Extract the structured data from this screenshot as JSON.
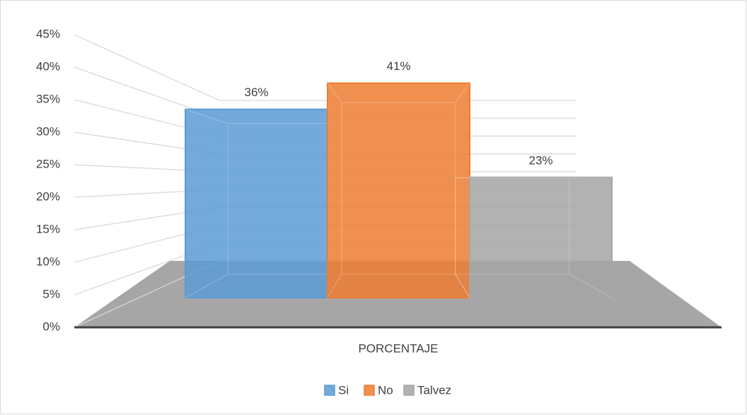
{
  "chart_data": {
    "type": "bar",
    "categories": [
      "PORCENTAJE"
    ],
    "series": [
      {
        "name": "Si",
        "color": "#5b9bd5",
        "values": [
          36
        ],
        "value_labels": [
          "36%"
        ]
      },
      {
        "name": "No",
        "color": "#ed7d31",
        "values": [
          41
        ],
        "value_labels": [
          "41%"
        ]
      },
      {
        "name": "Talvez",
        "color": "#a5a5a5",
        "values": [
          23
        ],
        "value_labels": [
          "23%"
        ]
      }
    ],
    "ylim": [
      0,
      45
    ],
    "yticks": [
      {
        "value": 0,
        "label": "0%"
      },
      {
        "value": 5,
        "label": "5%"
      },
      {
        "value": 10,
        "label": "10%"
      },
      {
        "value": 15,
        "label": "15%"
      },
      {
        "value": 20,
        "label": "20%"
      },
      {
        "value": 25,
        "label": "25%"
      },
      {
        "value": 30,
        "label": "30%"
      },
      {
        "value": 35,
        "label": "35%"
      },
      {
        "value": 40,
        "label": "40%"
      },
      {
        "value": 45,
        "label": "45%"
      }
    ],
    "grid": true,
    "legend": "bottom"
  }
}
